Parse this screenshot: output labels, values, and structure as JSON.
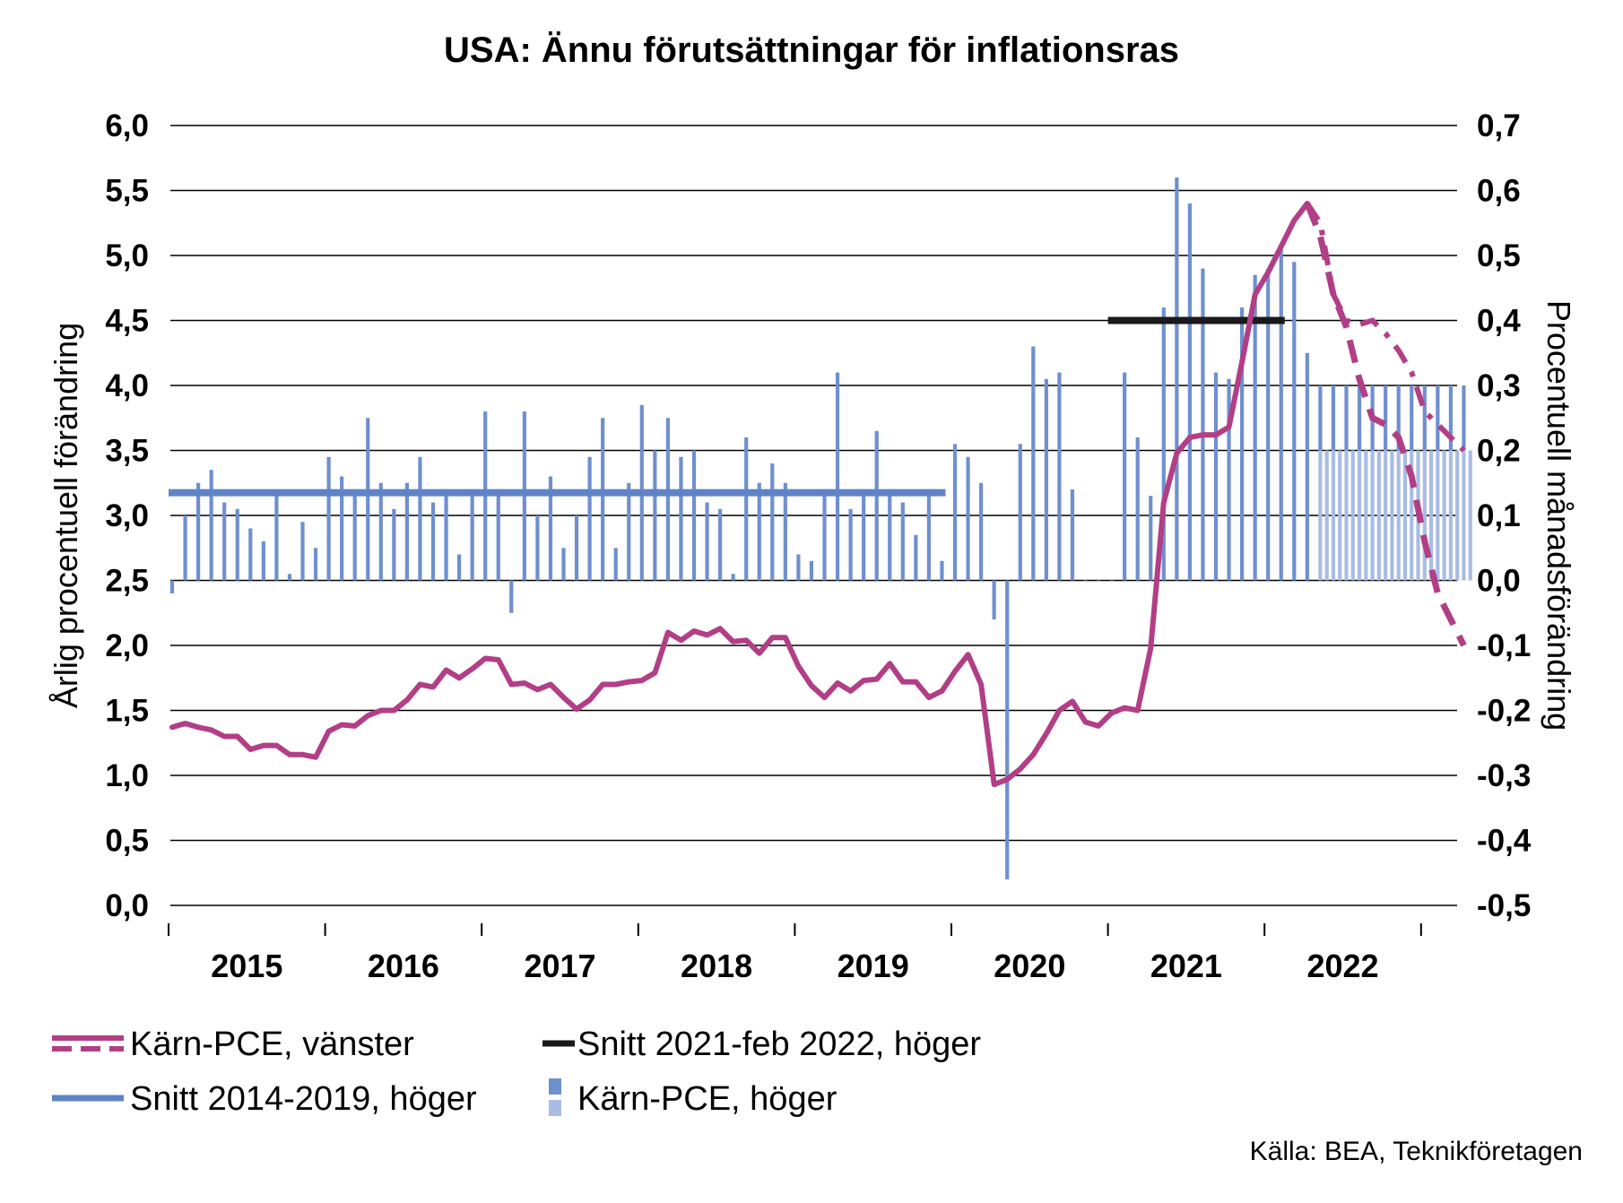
{
  "title": "USA: Ännu förutsättningar för inflationsras",
  "source": "Källa: BEA, Teknikföretagen",
  "colors": {
    "pce_line": "#b23e86",
    "bars": "#6f8fcf",
    "bars_forecast": "#a9bde3",
    "avg_2014_2019": "#5f83c4",
    "avg_2021_2022": "#1a1a1a",
    "grid": "#000000"
  },
  "chart_data": {
    "type": "bar+line",
    "ylabel_left": "Årlig procentuell förändring",
    "ylabel_right": "Procentuell månadsförändring",
    "ylim_left": [
      0,
      6
    ],
    "ylim_right": [
      -0.5,
      0.7
    ],
    "yticks_left": [
      "0,0",
      "0,5",
      "1,0",
      "1,5",
      "2,0",
      "2,5",
      "3,0",
      "3,5",
      "4,0",
      "4,5",
      "5,0",
      "5,5",
      "6,0"
    ],
    "yticks_right": [
      "-0,5",
      "-0,4",
      "-0,3",
      "-0,2",
      "-0,1",
      "0,0",
      "0,1",
      "0,2",
      "0,3",
      "0,4",
      "0,5",
      "0,6",
      "0,7"
    ],
    "years": [
      "2015",
      "2016",
      "2017",
      "2018",
      "2019",
      "2020",
      "2021",
      "2022"
    ],
    "x_start": "2015-01",
    "series": [
      {
        "name": "Kärn-PCE, höger",
        "kind": "bar",
        "axis": "right",
        "values": [
          -0.02,
          0.1,
          0.15,
          0.17,
          0.12,
          0.11,
          0.08,
          0.06,
          0.13,
          0.01,
          0.09,
          0.05,
          0.19,
          0.16,
          0.14,
          0.25,
          0.15,
          0.11,
          0.15,
          0.19,
          0.12,
          0.14,
          0.04,
          0.13,
          0.26,
          0.14,
          -0.05,
          0.26,
          0.1,
          0.16,
          0.05,
          0.1,
          0.19,
          0.25,
          0.05,
          0.15,
          0.27,
          0.2,
          0.25,
          0.19,
          0.2,
          0.12,
          0.11,
          0.01,
          0.22,
          0.15,
          0.18,
          0.15,
          0.04,
          0.03,
          0.14,
          0.32,
          0.11,
          0.14,
          0.23,
          0.14,
          0.12,
          0.07,
          0.14,
          0.03,
          0.21,
          0.19,
          0.15,
          -0.06,
          -0.46,
          0.21,
          0.36,
          0.31,
          0.32,
          0.14,
          0.0,
          0.0,
          0.0,
          0.32,
          0.22,
          0.13,
          0.42,
          0.62,
          0.58,
          0.48,
          0.32,
          0.31,
          0.42,
          0.47,
          0.48,
          0.51,
          0.49,
          0.35
        ],
        "forecast_values": [
          0.3,
          0.3,
          0.3,
          0.3,
          0.3,
          0.3,
          0.3,
          0.3,
          0.3,
          0.3,
          0.3,
          0.3
        ],
        "forecast_base": 0.2
      },
      {
        "name": "Kärn-PCE, vänster",
        "kind": "line",
        "axis": "left",
        "values": [
          1.37,
          1.4,
          1.37,
          1.35,
          1.3,
          1.3,
          1.2,
          1.23,
          1.23,
          1.16,
          1.16,
          1.14,
          1.34,
          1.39,
          1.38,
          1.46,
          1.5,
          1.5,
          1.58,
          1.7,
          1.68,
          1.81,
          1.75,
          1.82,
          1.9,
          1.89,
          1.7,
          1.71,
          1.66,
          1.7,
          1.6,
          1.51,
          1.58,
          1.7,
          1.7,
          1.72,
          1.73,
          1.79,
          2.1,
          2.04,
          2.11,
          2.08,
          2.13,
          2.03,
          2.04,
          1.94,
          2.06,
          2.06,
          1.84,
          1.69,
          1.6,
          1.71,
          1.65,
          1.73,
          1.74,
          1.86,
          1.72,
          1.72,
          1.6,
          1.65,
          1.8,
          1.93,
          1.7,
          0.93,
          0.97,
          1.05,
          1.16,
          1.32,
          1.5,
          1.57,
          1.41,
          1.38,
          1.48,
          1.52,
          1.5,
          1.98,
          3.1,
          3.48,
          3.6,
          3.62,
          3.62,
          3.68,
          4.18,
          4.7,
          4.87,
          5.07,
          5.27,
          5.4
        ],
        "forecast_high": [
          5.4,
          5.25,
          4.7,
          4.5,
          4.47,
          4.5,
          4.4,
          4.27,
          4.1,
          3.8,
          3.7,
          3.6,
          3.5
        ],
        "forecast_low": [
          5.4,
          5.15,
          4.7,
          4.45,
          4.05,
          3.75,
          3.7,
          3.6,
          3.3,
          2.8,
          2.4,
          2.2,
          2.0
        ]
      },
      {
        "name": "Snitt 2014-2019, höger",
        "kind": "hline",
        "axis": "right",
        "value": 0.135,
        "from": "2015-01",
        "to": "2019-12"
      },
      {
        "name": "Snitt 2021-feb 2022, höger",
        "kind": "hline",
        "axis": "right",
        "value": 0.4,
        "from": "2021-01",
        "to": "2022-02"
      }
    ],
    "legend": [
      {
        "label": "Kärn-PCE, vänster",
        "symbol": "line-dashed"
      },
      {
        "label": "Snitt 2021-feb 2022, höger",
        "symbol": "line-black"
      },
      {
        "label": "Snitt 2014-2019, höger",
        "symbol": "line-blue"
      },
      {
        "label": "Kärn-PCE, höger",
        "symbol": "bars-two"
      }
    ],
    "grid": true,
    "legend_position": "bottom"
  }
}
